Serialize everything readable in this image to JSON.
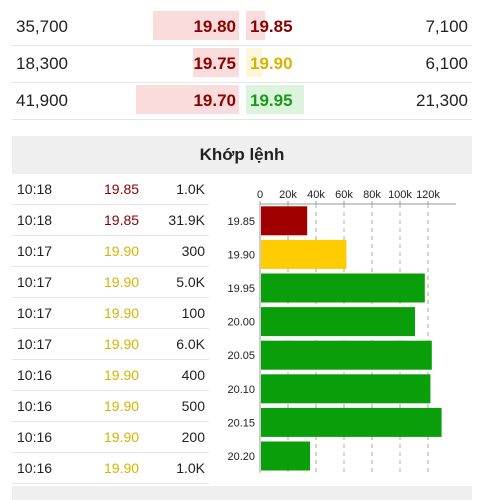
{
  "order_book": {
    "rows": [
      {
        "bid_volume": "35,700",
        "bid_price": "19.80",
        "ask_price": "19.85",
        "ask_volume": "7,100",
        "bid_fill": 0.36,
        "ask_fill": 0.12,
        "ask_color": "#8b0000",
        "ask_bg": "#fbdcdc"
      },
      {
        "bid_volume": "18,300",
        "bid_price": "19.75",
        "ask_price": "19.90",
        "ask_volume": "6,100",
        "bid_fill": 0.19,
        "ask_fill": 0.1,
        "ask_color": "#d9b300",
        "ask_bg": "#fcf6dc"
      },
      {
        "bid_volume": "41,900",
        "bid_price": "19.70",
        "ask_price": "19.95",
        "ask_volume": "21,300",
        "bid_fill": 0.43,
        "ask_fill": 0.36,
        "ask_color": "#1a9a1a",
        "ask_bg": "#dcf3dc"
      }
    ],
    "bid_color": "#8b0000"
  },
  "section": {
    "title": "Khớp lệnh"
  },
  "trades": [
    {
      "time": "10:18",
      "price": "19.85",
      "volume": "1.0K",
      "color": "#8b0000"
    },
    {
      "time": "10:18",
      "price": "19.85",
      "volume": "31.9K",
      "color": "#8b0000"
    },
    {
      "time": "10:17",
      "price": "19.90",
      "volume": "300",
      "color": "#d9b300"
    },
    {
      "time": "10:17",
      "price": "19.90",
      "volume": "5.0K",
      "color": "#d9b300"
    },
    {
      "time": "10:17",
      "price": "19.90",
      "volume": "100",
      "color": "#d9b300"
    },
    {
      "time": "10:17",
      "price": "19.90",
      "volume": "6.0K",
      "color": "#d9b300"
    },
    {
      "time": "10:16",
      "price": "19.90",
      "volume": "400",
      "color": "#d9b300"
    },
    {
      "time": "10:16",
      "price": "19.90",
      "volume": "500",
      "color": "#d9b300"
    },
    {
      "time": "10:16",
      "price": "19.90",
      "volume": "200",
      "color": "#d9b300"
    },
    {
      "time": "10:16",
      "price": "19.90",
      "volume": "1.0K",
      "color": "#d9b300"
    }
  ],
  "chart_data": {
    "type": "bar",
    "orientation": "horizontal",
    "categories": [
      "19.85",
      "19.90",
      "19.95",
      "20.00",
      "20.05",
      "20.10",
      "20.15",
      "20.20"
    ],
    "values": [
      33000,
      61000,
      117000,
      110000,
      122000,
      121000,
      129000,
      35000
    ],
    "colors": [
      "#a00000",
      "#ffcc00",
      "#0b9e0b",
      "#0b9e0b",
      "#0b9e0b",
      "#0b9e0b",
      "#0b9e0b",
      "#0b9e0b"
    ],
    "xticks": [
      0,
      20000,
      40000,
      60000,
      80000,
      100000,
      120000
    ],
    "xtick_labels": [
      "0",
      "20k",
      "40k",
      "60k",
      "80k",
      "100k",
      "120k"
    ],
    "xlim": [
      0,
      140000
    ],
    "grid": true,
    "title": "",
    "xlabel": "",
    "ylabel": ""
  }
}
